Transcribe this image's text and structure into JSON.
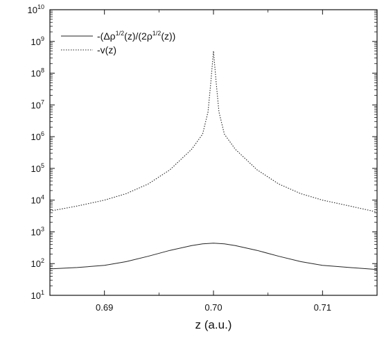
{
  "chart_data": {
    "type": "line",
    "xlabel": "z (a.u.)",
    "ylabel": "",
    "title": "",
    "xlim": [
      0.685,
      0.715
    ],
    "ylim": [
      10,
      10000000000
    ],
    "yscale": "log",
    "grid": false,
    "legend_position": "top-left",
    "x_ticks": [
      0.69,
      0.7,
      0.71
    ],
    "x_tick_labels": [
      "0.69",
      "0.70",
      "0.71"
    ],
    "y_tick_exponents": [
      1,
      2,
      3,
      4,
      5,
      6,
      7,
      8,
      9,
      10
    ],
    "y_tick_base": "10",
    "series": [
      {
        "name": "-(Δρ1/2(z)/(2ρ1/2(z))",
        "legend_parts": [
          "-(Δρ",
          "1/2",
          "(z)/(2ρ",
          "1/2",
          "(z))"
        ],
        "style": "solid",
        "color": "#222222",
        "x": [
          0.685,
          0.6875,
          0.69,
          0.692,
          0.694,
          0.696,
          0.698,
          0.699,
          0.7,
          0.701,
          0.702,
          0.704,
          0.706,
          0.708,
          0.71,
          0.7125,
          0.715
        ],
        "y": [
          68,
          75,
          88,
          115,
          170,
          260,
          370,
          420,
          440,
          420,
          370,
          260,
          170,
          115,
          88,
          75,
          65
        ]
      },
      {
        "name": "-v(z)",
        "legend_parts": [
          "-v(z)"
        ],
        "style": "dotted",
        "color": "#222222",
        "x": [
          0.685,
          0.6875,
          0.69,
          0.692,
          0.694,
          0.696,
          0.698,
          0.699,
          0.6995,
          0.69975,
          0.7,
          0.70025,
          0.7005,
          0.701,
          0.702,
          0.704,
          0.706,
          0.708,
          0.71,
          0.7125,
          0.715
        ],
        "y": [
          4500,
          6500,
          10000,
          16000,
          32000,
          90000,
          400000,
          1200000,
          6000000,
          50000000,
          500000000,
          50000000,
          6000000,
          1200000,
          400000,
          90000,
          32000,
          16000,
          10000,
          6500,
          4200
        ]
      }
    ]
  }
}
